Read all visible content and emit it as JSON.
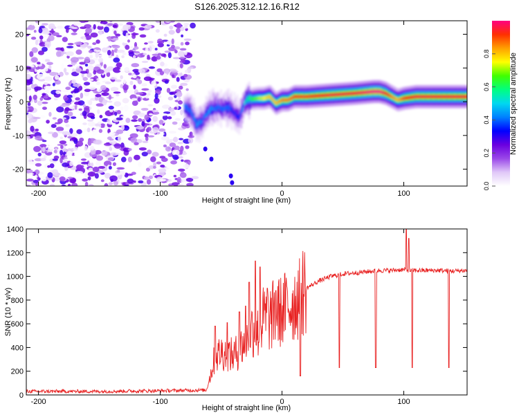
{
  "figure_title": "S126.2025.312.12.16.R12",
  "chart_data": [
    {
      "type": "heatmap",
      "title": "S126.2025.312.12.16.R12",
      "xlabel": "Height of straight line (km)",
      "ylabel": "Frequency (Hz)",
      "xlim": [
        -210,
        152
      ],
      "ylim": [
        -25,
        24
      ],
      "xticks": [
        -200,
        -100,
        0,
        100
      ],
      "yticks": [
        -20,
        -10,
        0,
        10,
        20
      ],
      "noise_region_x": [
        -210,
        -75
      ],
      "signal_band": {
        "x": [
          -80,
          -75,
          -70,
          -65,
          -60,
          -55,
          -50,
          -45,
          -40,
          -35,
          -30,
          -20,
          -15,
          -10,
          -5,
          0,
          5,
          10,
          20,
          40,
          60,
          75,
          80,
          85,
          90,
          95,
          100,
          110,
          130,
          152
        ],
        "freq_hz": [
          -1.5,
          -3.0,
          -7.0,
          -5.5,
          -2.5,
          -1.5,
          -2.0,
          -1.5,
          -3.0,
          -4.5,
          0.5,
          1.0,
          1.0,
          1.5,
          -0.5,
          0.5,
          0.5,
          1.5,
          1.5,
          2.0,
          2.5,
          3.0,
          3.0,
          2.5,
          1.5,
          0.5,
          1.0,
          1.5,
          1.5,
          1.5
        ],
        "peak_amplitude": [
          0.4,
          0.4,
          0.45,
          0.4,
          0.45,
          0.4,
          0.4,
          0.4,
          0.35,
          0.35,
          0.55,
          0.7,
          0.75,
          0.8,
          0.8,
          0.85,
          0.85,
          0.9,
          0.9,
          0.95,
          0.95,
          1.0,
          1.0,
          0.95,
          0.85,
          0.8,
          0.9,
          0.95,
          0.95,
          0.95
        ]
      },
      "scattered_points": [
        {
          "x": -63,
          "y": -14
        },
        {
          "x": -58,
          "y": -17
        },
        {
          "x": -42,
          "y": -22
        },
        {
          "x": -41,
          "y": -24
        }
      ],
      "colorbar": {
        "label": "Normalized spectral amplitude",
        "range": [
          0,
          1
        ],
        "ticks": [
          0.0,
          0.2,
          0.4,
          0.6,
          0.8
        ],
        "tick_labels": [
          "0.0",
          "0.2",
          "0.4",
          "0.6",
          "0.8"
        ],
        "colors": [
          "#ffffff",
          "#e0c8f8",
          "#9a48e8",
          "#6a00e0",
          "#0000ff",
          "#0080ff",
          "#00d8f0",
          "#00ff80",
          "#40ff00",
          "#ffff00",
          "#ffa000",
          "#ff3000",
          "#ff0080"
        ]
      }
    },
    {
      "type": "line",
      "xlabel": "Height of straight line (km)",
      "ylabel": "SNR (10 * v/v)",
      "xlim": [
        -210,
        152
      ],
      "ylim": [
        0,
        1400
      ],
      "xticks": [
        -200,
        -100,
        0,
        100
      ],
      "yticks": [
        0,
        200,
        400,
        600,
        800,
        1000,
        1200,
        1400
      ],
      "color": "#e82020",
      "series": [
        {
          "name": "SNR",
          "x": [
            -210,
            -150,
            -100,
            -70,
            -62,
            -58,
            -55,
            -50,
            -45,
            -40,
            -35,
            -30,
            -25,
            -20,
            -15,
            -10,
            -5,
            0,
            5,
            10,
            15,
            20,
            25,
            30,
            40,
            50,
            60,
            70,
            80,
            90,
            95,
            100,
            105,
            110,
            120,
            130,
            140,
            152
          ],
          "values": [
            30,
            30,
            35,
            40,
            40,
            200,
            320,
            360,
            350,
            330,
            380,
            460,
            560,
            520,
            650,
            640,
            700,
            700,
            760,
            780,
            850,
            900,
            930,
            960,
            1000,
            1020,
            1030,
            1040,
            1050,
            1050,
            1055,
            1055,
            1050,
            1050,
            1050,
            1050,
            1045,
            1050
          ]
        }
      ],
      "spikes": [
        {
          "x": -55,
          "value": 580
        },
        {
          "x": -45,
          "value": 610
        },
        {
          "x": -35,
          "value": 700
        },
        {
          "x": -30,
          "value": 750
        },
        {
          "x": -27,
          "value": 950
        },
        {
          "x": -22,
          "value": 1130
        },
        {
          "x": -18,
          "value": 1080
        },
        {
          "x": -12,
          "value": 900
        },
        {
          "x": -5,
          "value": 880
        }
      ],
      "dips": [
        {
          "x": 15,
          "value": 160
        },
        {
          "x": 47,
          "value": 230
        },
        {
          "x": 77,
          "value": 230
        },
        {
          "x": 102,
          "value": 360
        },
        {
          "x": 107,
          "value": 230
        },
        {
          "x": 137,
          "value": 230
        }
      ],
      "peaks": [
        {
          "x": 102,
          "value": 1400
        },
        {
          "x": 104,
          "value": 1320
        }
      ]
    }
  ]
}
